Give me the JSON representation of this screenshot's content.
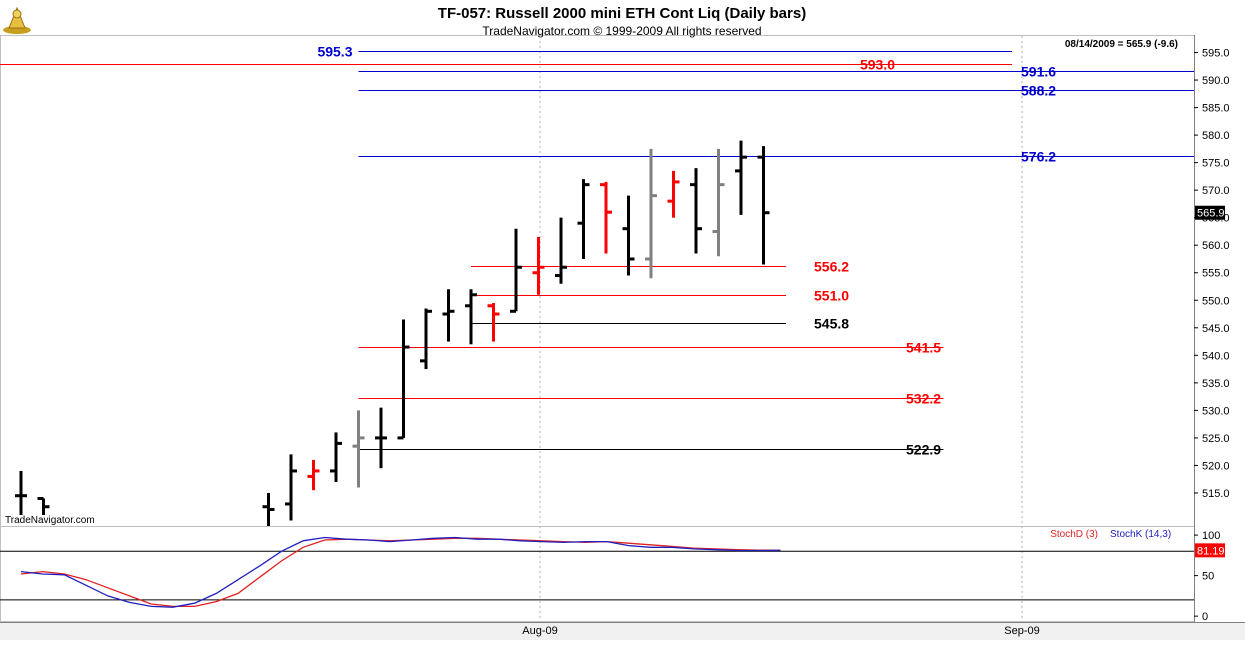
{
  "header": {
    "title": "TF-057:  Russell 2000 mini ETH Cont Liq  (Daily bars)",
    "subtitle": "TradeNavigator.com © 1999-2009 All rights reserved",
    "info": "08/14/2009 = 565.9 (-9.6)",
    "watermark": "TradeNavigator.com",
    "logo_icon": "trade-navigator-logo-icon"
  },
  "colors": {
    "up": "#000000",
    "down": "#ff0000",
    "neutral": "#808080",
    "blue_level": "#0000cc",
    "red_level": "#ff0000",
    "black_level": "#000000",
    "stoch_d": "#e02020",
    "stoch_k": "#2020c0"
  },
  "chart_data": [
    {
      "type": "ohlc",
      "title": "TF-057:  Russell 2000 mini ETH Cont Liq  (Daily bars)",
      "ylim": [
        509,
        598
      ],
      "yticks": [
        "515.0",
        "520.0",
        "525.0",
        "530.0",
        "535.0",
        "540.0",
        "545.0",
        "550.0",
        "555.0",
        "560.0",
        "565.0",
        "570.0",
        "575.0",
        "580.0",
        "585.0",
        "590.0",
        "595.0"
      ],
      "x_labels": [
        "Aug-09",
        "Sep-09"
      ],
      "last_price_label": "565.9",
      "bars": [
        {
          "i": 0,
          "o": 514.5,
          "h": 519,
          "l": 511,
          "c": 514.5,
          "color": "black"
        },
        {
          "i": 1,
          "o": 514,
          "h": 514,
          "l": 511,
          "c": 512.5,
          "color": "black"
        },
        {
          "i": 11,
          "o": 512.5,
          "h": 515,
          "l": 509,
          "c": 512,
          "color": "black"
        },
        {
          "i": 12,
          "o": 513,
          "h": 522,
          "l": 510,
          "c": 519,
          "color": "black"
        },
        {
          "i": 13,
          "o": 518,
          "h": 521,
          "l": 515.5,
          "c": 519,
          "color": "red"
        },
        {
          "i": 14,
          "o": 519,
          "h": 526,
          "l": 517,
          "c": 524,
          "color": "black"
        },
        {
          "i": 15,
          "o": 523.5,
          "h": 530,
          "l": 516,
          "c": 525,
          "color": "gray"
        },
        {
          "i": 16,
          "o": 525,
          "h": 530.5,
          "l": 519.5,
          "c": 525,
          "color": "black"
        },
        {
          "i": 17,
          "o": 525,
          "h": 546.5,
          "l": 525,
          "c": 541.5,
          "color": "black"
        },
        {
          "i": 18,
          "o": 539,
          "h": 548.5,
          "l": 537.5,
          "c": 548,
          "color": "black"
        },
        {
          "i": 19,
          "o": 547.5,
          "h": 552,
          "l": 542.5,
          "c": 548,
          "color": "black"
        },
        {
          "i": 20,
          "o": 549,
          "h": 552,
          "l": 542,
          "c": 551,
          "color": "black"
        },
        {
          "i": 21,
          "o": 549,
          "h": 549.5,
          "l": 542.5,
          "c": 547.5,
          "color": "red"
        },
        {
          "i": 22,
          "o": 548,
          "h": 563,
          "l": 548,
          "c": 556,
          "color": "black"
        },
        {
          "i": 23,
          "o": 555,
          "h": 561.5,
          "l": 551,
          "c": 556,
          "color": "red"
        },
        {
          "i": 24,
          "o": 554.5,
          "h": 565,
          "l": 553,
          "c": 556,
          "color": "black"
        },
        {
          "i": 25,
          "o": 564,
          "h": 572,
          "l": 557.5,
          "c": 571,
          "color": "black"
        },
        {
          "i": 26,
          "o": 571,
          "h": 571.5,
          "l": 558.5,
          "c": 566,
          "color": "red"
        },
        {
          "i": 27,
          "o": 563,
          "h": 569,
          "l": 554.5,
          "c": 557.5,
          "color": "black"
        },
        {
          "i": 28,
          "o": 557.5,
          "h": 577.5,
          "l": 554,
          "c": 569,
          "color": "gray"
        },
        {
          "i": 29,
          "o": 568,
          "h": 573.5,
          "l": 565,
          "c": 571.5,
          "color": "red"
        },
        {
          "i": 30,
          "o": 571,
          "h": 574,
          "l": 558.5,
          "c": 563,
          "color": "black"
        },
        {
          "i": 31,
          "o": 562.5,
          "h": 577.5,
          "l": 558,
          "c": 571,
          "color": "gray"
        },
        {
          "i": 32,
          "o": 573.5,
          "h": 579,
          "l": 565.5,
          "c": 576,
          "color": "black"
        },
        {
          "i": 33,
          "o": 576,
          "h": 578,
          "l": 556.5,
          "c": 565.9,
          "color": "black"
        }
      ],
      "levels": [
        {
          "value": 595.3,
          "label": "595.3",
          "color": "blue",
          "from_bar": 15,
          "to_bar": "end"
        },
        {
          "value": 593.0,
          "label": "593.0",
          "color": "red",
          "from_bar": "start",
          "to_bar": "end"
        },
        {
          "value": 591.6,
          "label": "591.6",
          "color": "blue",
          "from_bar": 15,
          "to_bar": "axis"
        },
        {
          "value": 588.2,
          "label": "588.2",
          "color": "blue",
          "from_bar": 15,
          "to_bar": "axis"
        },
        {
          "value": 576.2,
          "label": "576.2",
          "color": "blue",
          "from_bar": 15,
          "to_bar": "axis"
        },
        {
          "value": 556.2,
          "label": "556.2",
          "color": "red",
          "from_bar": 20,
          "to_bar": 34
        },
        {
          "value": 551.0,
          "label": "551.0",
          "color": "red",
          "from_bar": 20,
          "to_bar": 34
        },
        {
          "value": 545.8,
          "label": "545.8",
          "color": "black",
          "from_bar": 20,
          "to_bar": 34
        },
        {
          "value": 541.5,
          "label": "541.5",
          "color": "red",
          "from_bar": 15,
          "to_bar": 41
        },
        {
          "value": 532.2,
          "label": "532.2",
          "color": "red",
          "from_bar": 15,
          "to_bar": 41
        },
        {
          "value": 522.9,
          "label": "522.9",
          "color": "black",
          "from_bar": 15,
          "to_bar": 41
        }
      ]
    },
    {
      "type": "line",
      "ylim": [
        -6,
        110
      ],
      "yticks": [
        "0",
        "50",
        "100"
      ],
      "ref_lines": [
        20,
        80
      ],
      "last_value_label": "81.19",
      "series": [
        {
          "name": "StochD (3)",
          "color": "red",
          "values": [
            52,
            55,
            52,
            45,
            35,
            25,
            15,
            12,
            12,
            18,
            28,
            48,
            68,
            85,
            94,
            95,
            94,
            93,
            94,
            95,
            96,
            96,
            95,
            94,
            93,
            92,
            91,
            92,
            90,
            88,
            86,
            84,
            83,
            82,
            81.5,
            81.19
          ]
        },
        {
          "name": "StochK (14,3)",
          "color": "blue",
          "values": [
            55,
            52,
            51,
            38,
            25,
            17,
            12,
            11,
            16,
            28,
            45,
            62,
            80,
            93,
            97,
            95,
            94,
            92,
            94,
            96,
            97,
            95,
            95,
            93,
            92,
            91,
            92,
            92,
            87,
            85,
            85,
            83,
            82,
            81,
            81,
            81.19
          ]
        }
      ]
    }
  ]
}
